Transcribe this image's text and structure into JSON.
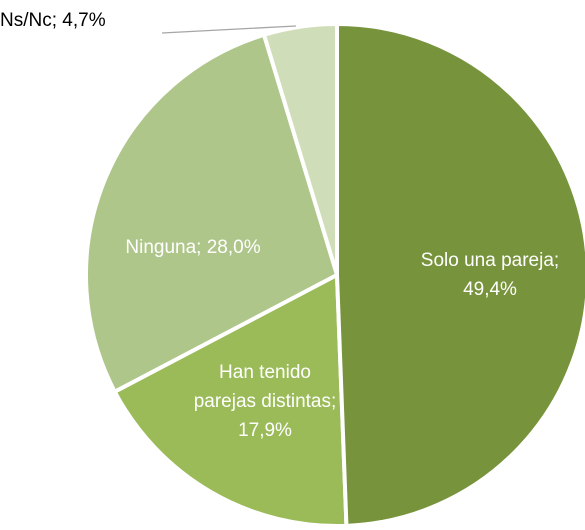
{
  "chart_data": {
    "type": "pie",
    "value_labels": [
      "Solo una pareja; 49,4%",
      "Han tenido parejas distintas; 17,9%",
      "Ninguna; 28,0%",
      "Ns/Nc; 4,7%"
    ],
    "values": [
      49.4,
      17.9,
      28.0,
      4.7
    ],
    "colors": [
      "#77933c",
      "#9bbb59",
      "#afc68a",
      "#d0ddb9"
    ]
  }
}
